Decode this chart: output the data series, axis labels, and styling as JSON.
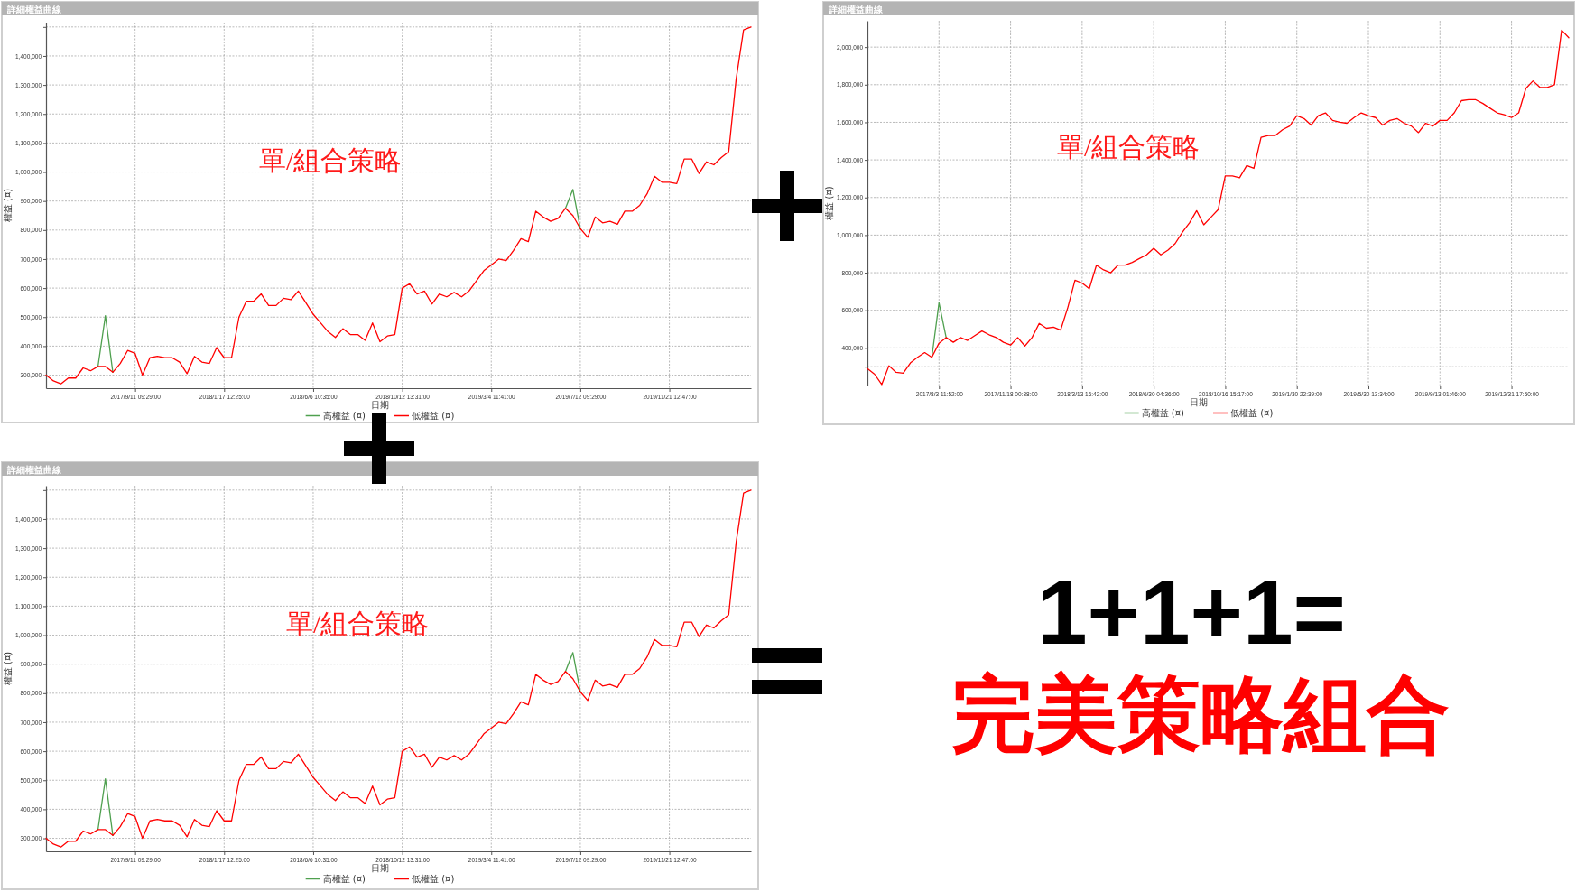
{
  "chart_data": [
    {
      "type": "line",
      "title": "詳細權益曲線",
      "xlabel": "日期",
      "ylabel": "權益 (¤)",
      "annotations": [
        "單/組合策略"
      ],
      "grid": true,
      "legend": "bottom",
      "ylim": [
        255000,
        1515000
      ],
      "yticks": [
        {
          "value": 300000,
          "label": "300,000"
        },
        {
          "value": 400000,
          "label": "400,000"
        },
        {
          "value": 500000,
          "label": "500,000"
        },
        {
          "value": 600000,
          "label": "600,000"
        },
        {
          "value": 700000,
          "label": "700,000"
        },
        {
          "value": 800000,
          "label": "800,000"
        },
        {
          "value": 900000,
          "label": "900,000"
        },
        {
          "value": 1000000,
          "label": "1,000,000"
        },
        {
          "value": 1100000,
          "label": "1,100,000"
        },
        {
          "value": 1200000,
          "label": "1,200,000"
        },
        {
          "value": 1300000,
          "label": "1,300,000"
        },
        {
          "value": 1400000,
          "label": "1,400,000"
        },
        {
          "value": 1500000,
          "label": null
        }
      ],
      "categories": [
        null,
        null,
        null,
        null,
        null,
        null,
        null,
        null,
        null,
        null,
        null,
        null,
        "2017/9/11 09:29:00",
        null,
        null,
        null,
        null,
        null,
        null,
        null,
        null,
        null,
        null,
        null,
        "2018/1/17 12:25:00",
        null,
        null,
        null,
        null,
        null,
        null,
        null,
        null,
        null,
        null,
        null,
        "2018/6/6 10:35:00",
        null,
        null,
        null,
        null,
        null,
        null,
        null,
        null,
        null,
        null,
        null,
        "2018/10/12 13:31:00",
        null,
        null,
        null,
        null,
        null,
        null,
        null,
        null,
        null,
        null,
        null,
        "2019/3/4 11:41:00",
        null,
        null,
        null,
        null,
        null,
        null,
        null,
        null,
        null,
        null,
        null,
        "2019/7/12 09:29:00",
        null,
        null,
        null,
        null,
        null,
        null,
        null,
        null,
        null,
        null,
        null,
        "2019/11/21 12:47:00",
        null,
        null,
        null,
        null,
        null,
        null,
        null,
        null,
        null,
        null,
        null
      ],
      "series": [
        {
          "name": "高權益 (¤)",
          "color": "#4fa04f",
          "values": [
            null,
            null,
            null,
            null,
            null,
            null,
            null,
            330000,
            505000,
            310000,
            null,
            null,
            null,
            null,
            null,
            null,
            null,
            null,
            null,
            null,
            null,
            null,
            null,
            null,
            null,
            null,
            null,
            null,
            null,
            null,
            null,
            null,
            null,
            null,
            null,
            null,
            null,
            null,
            null,
            null,
            null,
            null,
            null,
            null,
            null,
            null,
            null,
            null,
            null,
            null,
            null,
            null,
            null,
            null,
            null,
            null,
            null,
            null,
            null,
            null,
            null,
            null,
            null,
            null,
            null,
            null,
            null,
            null,
            null,
            null,
            875000,
            940000,
            805000,
            null,
            null,
            null,
            null,
            null,
            null,
            null,
            null,
            null,
            null,
            null,
            null,
            null,
            null,
            null,
            null,
            null,
            null,
            null,
            null,
            null,
            null,
            null
          ]
        },
        {
          "name": "低權益 (¤)",
          "color": "#ff0000",
          "values": [
            300000,
            280000,
            270000,
            290000,
            290000,
            325000,
            315000,
            330000,
            330000,
            310000,
            340000,
            385000,
            375000,
            300000,
            360000,
            365000,
            360000,
            360000,
            345000,
            305000,
            365000,
            345000,
            340000,
            395000,
            360000,
            360000,
            500000,
            555000,
            555000,
            580000,
            540000,
            540000,
            565000,
            560000,
            590000,
            550000,
            510000,
            480000,
            450000,
            430000,
            460000,
            440000,
            440000,
            420000,
            480000,
            415000,
            435000,
            440000,
            600000,
            615000,
            580000,
            590000,
            545000,
            580000,
            570000,
            585000,
            570000,
            590000,
            625000,
            660000,
            680000,
            700000,
            695000,
            730000,
            770000,
            760000,
            865000,
            845000,
            830000,
            840000,
            875000,
            850000,
            805000,
            775000,
            845000,
            825000,
            830000,
            820000,
            865000,
            865000,
            885000,
            925000,
            985000,
            965000,
            965000,
            960000,
            1045000,
            1045000,
            995000,
            1035000,
            1025000,
            1050000,
            1070000,
            1320000,
            1490000,
            1500000
          ]
        }
      ]
    },
    {
      "type": "line",
      "title": "詳細權益曲線",
      "xlabel": "日期",
      "ylabel": "權益 (¤)",
      "annotations": [
        "單/組合策略"
      ],
      "grid": true,
      "legend": "bottom",
      "ylim": [
        200000,
        2140000
      ],
      "yticks": [
        {
          "value": 300000,
          "label": null
        },
        {
          "value": 400000,
          "label": "400,000"
        },
        {
          "value": 600000,
          "label": "600,000"
        },
        {
          "value": 800000,
          "label": "800,000"
        },
        {
          "value": 1000000,
          "label": "1,000,000"
        },
        {
          "value": 1200000,
          "label": "1,200,000"
        },
        {
          "value": 1400000,
          "label": "1,400,000"
        },
        {
          "value": 1600000,
          "label": "1,600,000"
        },
        {
          "value": 1800000,
          "label": "1,800,000"
        },
        {
          "value": 2000000,
          "label": "2,000,000"
        }
      ],
      "categories": [
        null,
        null,
        null,
        null,
        null,
        null,
        null,
        null,
        null,
        null,
        "2017/8/3 11:52:00",
        null,
        null,
        null,
        null,
        null,
        null,
        null,
        null,
        null,
        "2017/11/18 00:38:00",
        null,
        null,
        null,
        null,
        null,
        null,
        null,
        null,
        null,
        "2018/3/13 16:42:00",
        null,
        null,
        null,
        null,
        null,
        null,
        null,
        null,
        null,
        "2018/6/30 04:36:00",
        null,
        null,
        null,
        null,
        null,
        null,
        null,
        null,
        null,
        "2018/10/16 15:17:00",
        null,
        null,
        null,
        null,
        null,
        null,
        null,
        null,
        null,
        "2019/1/30 22:39:00",
        null,
        null,
        null,
        null,
        null,
        null,
        null,
        null,
        null,
        "2019/5/30 13:34:00",
        null,
        null,
        null,
        null,
        null,
        null,
        null,
        null,
        null,
        "2019/9/13 01:46:00",
        null,
        null,
        null,
        null,
        null,
        null,
        null,
        null,
        null,
        "2019/12/31 17:50:00",
        null,
        null,
        null,
        null,
        null,
        null,
        null,
        null
      ],
      "series": [
        {
          "name": "高權益 (¤)",
          "color": "#4fa04f",
          "values": [
            null,
            null,
            null,
            null,
            null,
            null,
            null,
            null,
            null,
            350000,
            640000,
            455000,
            null,
            null,
            null,
            null,
            null,
            null,
            null,
            null,
            null,
            null,
            null,
            null,
            null,
            null,
            null,
            null,
            null,
            null,
            null,
            null,
            null,
            null,
            null,
            null,
            null,
            null,
            null,
            null,
            null,
            null,
            null,
            null,
            null,
            null,
            null,
            null,
            null,
            null,
            null,
            null,
            null,
            null,
            null,
            null,
            null,
            null,
            null,
            null,
            null,
            null,
            null,
            null,
            null,
            null,
            null,
            null,
            null,
            null,
            null,
            null,
            null,
            null,
            null,
            null,
            null,
            null,
            null,
            null,
            null,
            null,
            null,
            null,
            null,
            null,
            null,
            null,
            null,
            null,
            null,
            null,
            null,
            null,
            null,
            null,
            null,
            null,
            null
          ]
        },
        {
          "name": "低權益 (¤)",
          "color": "#ff0000",
          "values": [
            290000,
            260000,
            205000,
            305000,
            270000,
            265000,
            320000,
            350000,
            375000,
            350000,
            425000,
            455000,
            430000,
            455000,
            440000,
            465000,
            490000,
            470000,
            455000,
            430000,
            415000,
            455000,
            410000,
            455000,
            530000,
            505000,
            510000,
            495000,
            615000,
            760000,
            745000,
            715000,
            840000,
            815000,
            800000,
            840000,
            840000,
            855000,
            875000,
            895000,
            930000,
            895000,
            920000,
            955000,
            1015000,
            1065000,
            1130000,
            1055000,
            1095000,
            1135000,
            1315000,
            1315000,
            1305000,
            1370000,
            1355000,
            1520000,
            1530000,
            1530000,
            1560000,
            1580000,
            1635000,
            1620000,
            1585000,
            1635000,
            1650000,
            1610000,
            1600000,
            1595000,
            1625000,
            1650000,
            1635000,
            1625000,
            1585000,
            1610000,
            1620000,
            1595000,
            1580000,
            1545000,
            1595000,
            1580000,
            1610000,
            1610000,
            1650000,
            1715000,
            1720000,
            1720000,
            1700000,
            1675000,
            1650000,
            1640000,
            1625000,
            1650000,
            1780000,
            1820000,
            1785000,
            1785000,
            1800000,
            2090000,
            2050000
          ]
        }
      ]
    },
    {
      "type": "line",
      "title": "詳細權益曲線",
      "xlabel": "日期",
      "ylabel": "權益 (¤)",
      "annotations": [
        "單/組合策略"
      ],
      "grid": true,
      "legend": "bottom",
      "ylim": [
        255000,
        1515000
      ],
      "yticks": [
        {
          "value": 300000,
          "label": "300,000"
        },
        {
          "value": 400000,
          "label": "400,000"
        },
        {
          "value": 500000,
          "label": "500,000"
        },
        {
          "value": 600000,
          "label": "600,000"
        },
        {
          "value": 700000,
          "label": "700,000"
        },
        {
          "value": 800000,
          "label": "800,000"
        },
        {
          "value": 900000,
          "label": "900,000"
        },
        {
          "value": 1000000,
          "label": "1,000,000"
        },
        {
          "value": 1100000,
          "label": "1,100,000"
        },
        {
          "value": 1200000,
          "label": "1,200,000"
        },
        {
          "value": 1300000,
          "label": "1,300,000"
        },
        {
          "value": 1400000,
          "label": "1,400,000"
        },
        {
          "value": 1500000,
          "label": null
        }
      ],
      "categories": [
        null,
        null,
        null,
        null,
        null,
        null,
        null,
        null,
        null,
        null,
        null,
        null,
        "2017/9/11 09:29:00",
        null,
        null,
        null,
        null,
        null,
        null,
        null,
        null,
        null,
        null,
        null,
        "2018/1/17 12:25:00",
        null,
        null,
        null,
        null,
        null,
        null,
        null,
        null,
        null,
        null,
        null,
        "2018/6/6 10:35:00",
        null,
        null,
        null,
        null,
        null,
        null,
        null,
        null,
        null,
        null,
        null,
        "2018/10/12 13:31:00",
        null,
        null,
        null,
        null,
        null,
        null,
        null,
        null,
        null,
        null,
        null,
        "2019/3/4 11:41:00",
        null,
        null,
        null,
        null,
        null,
        null,
        null,
        null,
        null,
        null,
        null,
        "2019/7/12 09:29:00",
        null,
        null,
        null,
        null,
        null,
        null,
        null,
        null,
        null,
        null,
        null,
        "2019/11/21 12:47:00",
        null,
        null,
        null,
        null,
        null,
        null,
        null,
        null,
        null,
        null,
        null
      ],
      "series": [
        {
          "name": "高權益 (¤)",
          "color": "#4fa04f",
          "values": [
            null,
            null,
            null,
            null,
            null,
            null,
            null,
            330000,
            505000,
            310000,
            null,
            null,
            null,
            null,
            null,
            null,
            null,
            null,
            null,
            null,
            null,
            null,
            null,
            null,
            null,
            null,
            null,
            null,
            null,
            null,
            null,
            null,
            null,
            null,
            null,
            null,
            null,
            null,
            null,
            null,
            null,
            null,
            null,
            null,
            null,
            null,
            null,
            null,
            null,
            null,
            null,
            null,
            null,
            null,
            null,
            null,
            null,
            null,
            null,
            null,
            null,
            null,
            null,
            null,
            null,
            null,
            null,
            null,
            null,
            null,
            875000,
            940000,
            805000,
            null,
            null,
            null,
            null,
            null,
            null,
            null,
            null,
            null,
            null,
            null,
            null,
            null,
            null,
            null,
            null,
            null,
            null,
            null,
            null,
            null,
            null,
            null
          ]
        },
        {
          "name": "低權益 (¤)",
          "color": "#ff0000",
          "values": [
            300000,
            280000,
            270000,
            290000,
            290000,
            325000,
            315000,
            330000,
            330000,
            310000,
            340000,
            385000,
            375000,
            300000,
            360000,
            365000,
            360000,
            360000,
            345000,
            305000,
            365000,
            345000,
            340000,
            395000,
            360000,
            360000,
            500000,
            555000,
            555000,
            580000,
            540000,
            540000,
            565000,
            560000,
            590000,
            550000,
            510000,
            480000,
            450000,
            430000,
            460000,
            440000,
            440000,
            420000,
            480000,
            415000,
            435000,
            440000,
            600000,
            615000,
            580000,
            590000,
            545000,
            580000,
            570000,
            585000,
            570000,
            590000,
            625000,
            660000,
            680000,
            700000,
            695000,
            730000,
            770000,
            760000,
            865000,
            845000,
            830000,
            840000,
            875000,
            850000,
            805000,
            775000,
            845000,
            825000,
            830000,
            820000,
            865000,
            865000,
            885000,
            925000,
            985000,
            965000,
            965000,
            960000,
            1045000,
            1045000,
            995000,
            1035000,
            1025000,
            1050000,
            1070000,
            1320000,
            1490000,
            1500000
          ]
        }
      ]
    },
    {
      "type": "other",
      "title": "1+1+1=",
      "subtitle": "完美策略組合"
    }
  ]
}
